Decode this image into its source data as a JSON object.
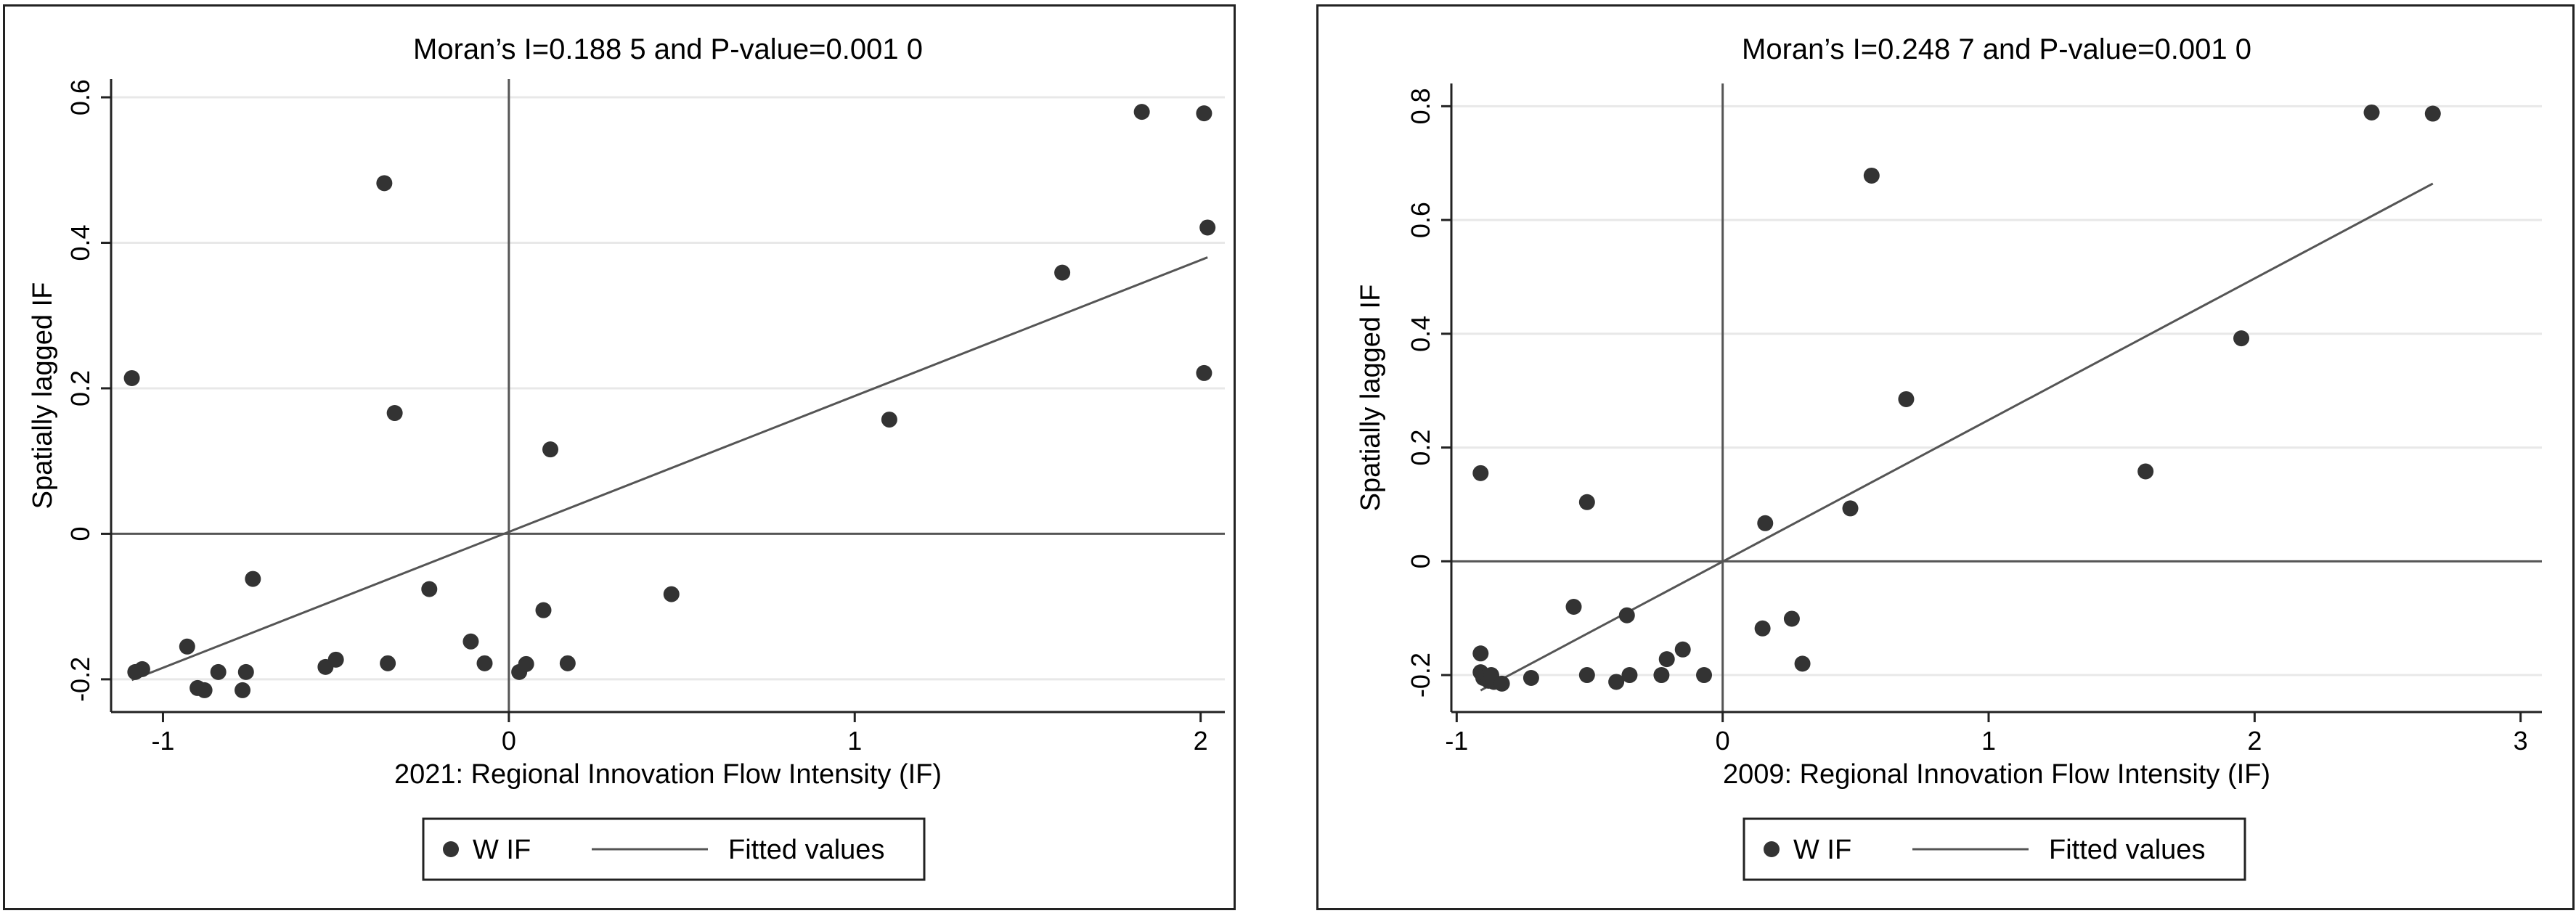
{
  "chart_data": [
    {
      "type": "scatter",
      "title": "Moran’s I=0.188 5 and P-value=0.001 0",
      "xlabel": "2021: Regional Innovation Flow Intensity (IF)",
      "ylabel": "Spatially lagged IF",
      "xlim": [
        -1.15,
        2.07
      ],
      "ylim": [
        -0.245,
        0.625
      ],
      "xticks": [
        -1,
        0,
        1,
        2
      ],
      "yticks": [
        -0.2,
        0,
        0.2,
        0.4,
        0.6
      ],
      "ytick_labels": [
        "-0.2",
        "0",
        "0.2",
        "0.4",
        "0.6"
      ],
      "grid": true,
      "legend_position": "bottom",
      "series": [
        {
          "name": "W IF",
          "type": "scatter",
          "x": [
            -1.09,
            -1.08,
            -1.06,
            -0.93,
            -0.9,
            -0.88,
            -0.84,
            -0.77,
            -0.76,
            -0.74,
            -0.53,
            -0.5,
            -0.35,
            -0.36,
            -0.33,
            -0.23,
            -0.11,
            -0.07,
            0.03,
            0.05,
            0.1,
            0.12,
            0.17,
            0.47,
            1.1,
            1.6,
            1.83,
            2.01,
            2.02,
            2.01
          ],
          "y": [
            0.214,
            -0.19,
            -0.186,
            -0.155,
            -0.212,
            -0.215,
            -0.19,
            -0.215,
            -0.19,
            -0.062,
            -0.183,
            -0.173,
            -0.178,
            0.482,
            0.166,
            -0.076,
            -0.148,
            -0.178,
            -0.19,
            -0.179,
            -0.105,
            0.116,
            -0.178,
            -0.083,
            0.157,
            0.359,
            0.58,
            0.578,
            0.421,
            0.221
          ]
        },
        {
          "name": "Fitted values",
          "type": "line",
          "x": [
            -1.09,
            2.02
          ],
          "y": [
            -0.201,
            0.38
          ]
        }
      ]
    },
    {
      "type": "scatter",
      "title": "Moran’s I=0.248 7 and P-value=0.001 0",
      "xlabel": "2009: Regional Innovation Flow Intensity (IF)",
      "ylabel": "Spatially lagged IF",
      "xlim": [
        -1.02,
        3.08
      ],
      "ylim": [
        -0.265,
        0.84
      ],
      "xticks": [
        -1,
        0,
        1,
        2,
        3
      ],
      "yticks": [
        -0.2,
        0,
        0.2,
        0.4,
        0.6,
        0.8
      ],
      "ytick_labels": [
        "-0.2",
        "0",
        "0.2",
        "0.4",
        "0.6",
        "0.8"
      ],
      "grid": true,
      "legend_position": "bottom",
      "series": [
        {
          "name": "W IF",
          "type": "scatter",
          "x": [
            -0.91,
            -0.91,
            -0.91,
            -0.9,
            -0.88,
            -0.87,
            -0.86,
            -0.83,
            -0.72,
            -0.56,
            -0.51,
            -0.51,
            -0.4,
            -0.36,
            -0.35,
            -0.23,
            -0.21,
            -0.15,
            -0.07,
            0.15,
            0.16,
            0.26,
            0.3,
            0.48,
            0.56,
            0.69,
            1.59,
            1.95,
            2.44,
            2.67
          ],
          "y": [
            0.155,
            -0.162,
            -0.195,
            -0.205,
            -0.21,
            -0.2,
            -0.212,
            -0.215,
            -0.205,
            -0.08,
            0.104,
            -0.2,
            -0.212,
            -0.095,
            -0.2,
            -0.2,
            -0.172,
            -0.155,
            -0.2,
            -0.118,
            0.067,
            -0.101,
            -0.18,
            0.093,
            0.678,
            0.285,
            0.158,
            0.392,
            0.789,
            0.787
          ]
        },
        {
          "name": "Fitted values",
          "type": "line",
          "x": [
            -0.91,
            2.67
          ],
          "y": [
            -0.227,
            0.664
          ]
        }
      ]
    }
  ]
}
